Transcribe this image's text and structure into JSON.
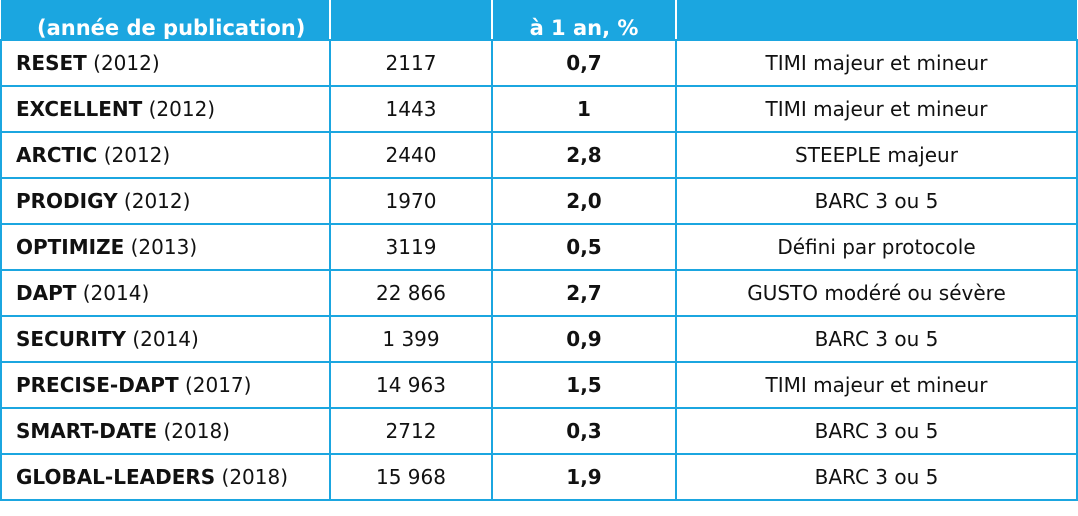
{
  "header": {
    "col1": "(année de publication)",
    "col2": "",
    "col3_top": "",
    "col3": "à 1 an, %",
    "col4": ""
  },
  "rows": [
    {
      "trial": "RESET",
      "year": "(2012)",
      "patients": "2117",
      "rate": "0,7",
      "definition": "TIMI majeur et mineur"
    },
    {
      "trial": "EXCELLENT",
      "year": "(2012)",
      "patients": "1443",
      "rate": "1",
      "definition": "TIMI majeur et mineur"
    },
    {
      "trial": "ARCTIC",
      "year": "(2012)",
      "patients": "2440",
      "rate": "2,8",
      "definition": "STEEPLE majeur"
    },
    {
      "trial": "PRODIGY",
      "year": "(2012)",
      "patients": "1970",
      "rate": "2,0",
      "definition": "BARC 3 ou 5"
    },
    {
      "trial": "OPTIMIZE",
      "year": "(2013)",
      "patients": "3119",
      "rate": "0,5",
      "definition": "Défini par protocole"
    },
    {
      "trial": "DAPT",
      "year": "(2014)",
      "patients": "22 866",
      "rate": "2,7",
      "definition": "GUSTO modéré ou sévère"
    },
    {
      "trial": "SECURITY",
      "year": "(2014)",
      "patients": "1 399",
      "rate": "0,9",
      "definition": "BARC 3 ou 5"
    },
    {
      "trial": "PRECISE-DAPT",
      "year": "(2017)",
      "patients": "14 963",
      "rate": "1,5",
      "definition": "TIMI majeur et mineur"
    },
    {
      "trial": "SMART-DATE",
      "year": "(2018)",
      "patients": "2712",
      "rate": "0,3",
      "definition": "BARC 3 ou 5"
    },
    {
      "trial": "GLOBAL-LEADERS",
      "year": "(2018)",
      "patients": "15 968",
      "rate": "1,9",
      "definition": "BARC 3 ou 5"
    }
  ],
  "colors": {
    "header_bg": "#1ba6e0",
    "border": "#1ba6e0",
    "header_text": "#ffffff"
  }
}
